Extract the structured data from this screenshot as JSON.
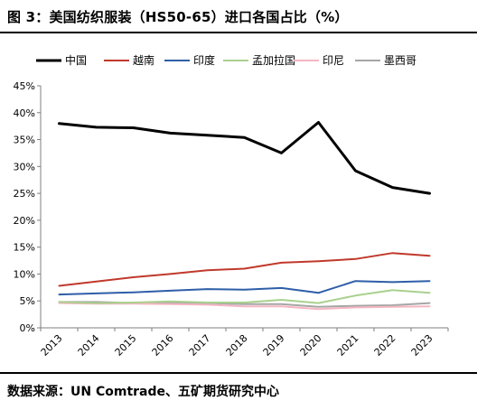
{
  "title": "图 3：美国纺织服装（HS50-65）进口各国占比（%）",
  "source": "数据来源：UN Comtrade、五矿期货研究中心",
  "chart_data": {
    "type": "line",
    "x": [
      "2013",
      "2014",
      "2015",
      "2016",
      "2017",
      "2018",
      "2019",
      "2020",
      "2021",
      "2022",
      "2023"
    ],
    "ylim": [
      0,
      45
    ],
    "yticks": [
      "0%",
      "5%",
      "10%",
      "15%",
      "20%",
      "25%",
      "30%",
      "35%",
      "40%",
      "45%"
    ],
    "ytick_values": [
      0,
      5,
      10,
      15,
      20,
      25,
      30,
      35,
      40,
      45
    ],
    "grid": false,
    "legend_position": "top",
    "series": [
      {
        "name": "中国",
        "color": "#000000",
        "width": 3,
        "values": [
          38.0,
          37.3,
          37.2,
          36.2,
          35.8,
          35.4,
          32.5,
          38.2,
          29.2,
          26.1,
          25.0
        ]
      },
      {
        "name": "越南",
        "color": "#c0392b",
        "width": 2,
        "values": [
          7.8,
          8.6,
          9.4,
          10.0,
          10.7,
          11.0,
          12.1,
          12.4,
          12.8,
          13.9,
          13.4
        ]
      },
      {
        "name": "印度",
        "color": "#2e5ea8",
        "width": 2,
        "values": [
          6.2,
          6.4,
          6.6,
          6.9,
          7.2,
          7.1,
          7.4,
          6.5,
          8.7,
          8.5,
          8.7
        ]
      },
      {
        "name": "孟加拉国",
        "color": "#a9d18e",
        "width": 2,
        "values": [
          4.8,
          4.6,
          4.7,
          4.9,
          4.7,
          4.7,
          5.2,
          4.6,
          6.0,
          7.0,
          6.5
        ]
      },
      {
        "name": "印尼",
        "color": "#f4b6c2",
        "width": 2,
        "values": [
          4.6,
          4.5,
          4.5,
          4.4,
          4.3,
          4.0,
          4.0,
          3.5,
          3.8,
          3.9,
          4.0
        ]
      },
      {
        "name": "墨西哥",
        "color": "#a6a6a6",
        "width": 2,
        "values": [
          4.8,
          4.8,
          4.6,
          4.6,
          4.6,
          4.4,
          4.4,
          3.9,
          4.1,
          4.2,
          4.6
        ]
      }
    ]
  }
}
